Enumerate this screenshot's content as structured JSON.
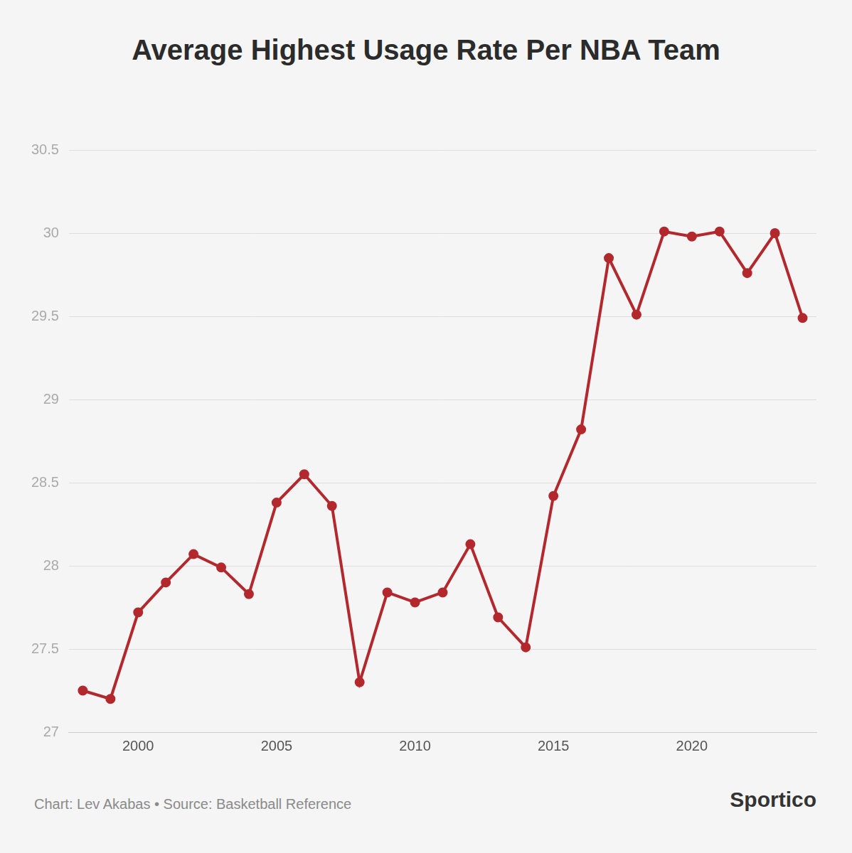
{
  "chart_data": {
    "type": "line",
    "title": "Average Highest Usage Rate Per NBA Team",
    "x": [
      1998,
      1999,
      2000,
      2001,
      2002,
      2003,
      2004,
      2005,
      2006,
      2007,
      2008,
      2009,
      2010,
      2011,
      2012,
      2013,
      2014,
      2015,
      2016,
      2017,
      2018,
      2019,
      2020,
      2021,
      2022,
      2023,
      2024
    ],
    "values": [
      27.25,
      27.2,
      27.72,
      27.9,
      28.07,
      27.99,
      27.83,
      28.38,
      28.55,
      28.36,
      27.3,
      27.84,
      27.78,
      27.84,
      28.13,
      27.69,
      27.51,
      28.42,
      28.82,
      29.85,
      29.51,
      30.01,
      29.98,
      30.01,
      29.76,
      30.0,
      29.49
    ],
    "color": "#b3282d",
    "marker": "circle",
    "xlim": [
      1997.5,
      2024.5
    ],
    "xticks": [
      2000,
      2005,
      2010,
      2015,
      2020
    ],
    "ylim": [
      27,
      30.5
    ],
    "yticks": [
      27,
      27.5,
      28,
      28.5,
      29,
      29.5,
      30,
      30.5
    ],
    "grid": true,
    "caption": "Chart: Lev Akabas • Source: Basketball Reference",
    "brand": "Sportico"
  }
}
